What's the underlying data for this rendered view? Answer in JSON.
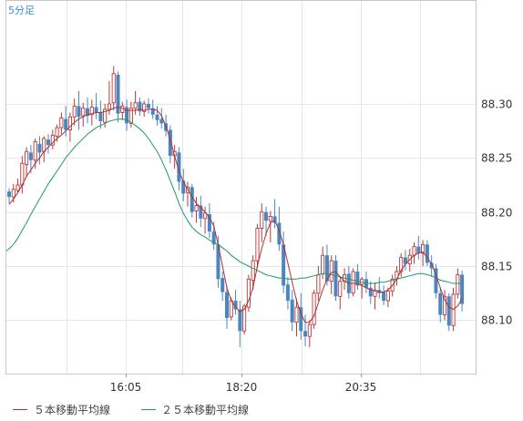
{
  "chart_data": {
    "type": "candlestick",
    "timeframe_label": "5分足",
    "x_ticks": [
      "16:05",
      "18:20",
      "20:35"
    ],
    "y_ticks": [
      "88.30",
      "88.25",
      "88.20",
      "88.15",
      "88.10"
    ],
    "y_tick_values": [
      88.3,
      88.25,
      88.2,
      88.15,
      88.1
    ],
    "ylim": [
      88.0506,
      88.3952
    ],
    "grid": true,
    "legend_position": "bottom-left",
    "colors": {
      "up": "#b83a3a",
      "down": "#4a86c0",
      "ma5": "#b03030",
      "ma25": "#1a9a6a",
      "grid": "#e6e6e6",
      "axis_text": "#333333"
    },
    "series": [
      {
        "name": "５本移動平均線",
        "color": "#b03030"
      },
      {
        "name": "２５本移動平均線",
        "color": "#1a9a6a"
      }
    ],
    "candles": [
      [
        88.219,
        88.222,
        88.208,
        88.214
      ],
      [
        88.214,
        88.226,
        88.209,
        88.221
      ],
      [
        88.22,
        88.231,
        88.218,
        88.225
      ],
      [
        88.225,
        88.252,
        88.217,
        88.245
      ],
      [
        88.244,
        88.26,
        88.232,
        88.256
      ],
      [
        88.255,
        88.262,
        88.236,
        88.248
      ],
      [
        88.248,
        88.268,
        88.24,
        88.265
      ],
      [
        88.263,
        88.27,
        88.244,
        88.255
      ],
      [
        88.256,
        88.27,
        88.246,
        88.268
      ],
      [
        88.267,
        88.272,
        88.254,
        88.262
      ],
      [
        88.262,
        88.276,
        88.258,
        88.271
      ],
      [
        88.27,
        88.281,
        88.265,
        88.278
      ],
      [
        88.278,
        88.292,
        88.272,
        88.287
      ],
      [
        88.286,
        88.298,
        88.27,
        88.276
      ],
      [
        88.276,
        88.292,
        88.265,
        88.288
      ],
      [
        88.288,
        88.305,
        88.28,
        88.298
      ],
      [
        88.298,
        88.312,
        88.276,
        88.288
      ],
      [
        88.289,
        88.301,
        88.279,
        88.296
      ],
      [
        88.296,
        88.306,
        88.282,
        88.289
      ],
      [
        88.29,
        88.304,
        88.28,
        88.297
      ],
      [
        88.297,
        88.31,
        88.286,
        88.292
      ],
      [
        88.292,
        88.303,
        88.277,
        88.284
      ],
      [
        88.283,
        88.3,
        88.278,
        88.295
      ],
      [
        88.295,
        88.321,
        88.29,
        88.3
      ],
      [
        88.301,
        88.335,
        88.294,
        88.328
      ],
      [
        88.327,
        88.33,
        88.283,
        88.291
      ],
      [
        88.292,
        88.302,
        88.285,
        88.298
      ],
      [
        88.297,
        88.304,
        88.275,
        88.282
      ],
      [
        88.282,
        88.302,
        88.278,
        88.296
      ],
      [
        88.296,
        88.312,
        88.29,
        88.301
      ],
      [
        88.302,
        88.306,
        88.289,
        88.293
      ],
      [
        88.293,
        88.303,
        88.288,
        88.3
      ],
      [
        88.3,
        88.305,
        88.291,
        88.296
      ],
      [
        88.296,
        88.304,
        88.286,
        88.29
      ],
      [
        88.29,
        88.298,
        88.28,
        88.285
      ],
      [
        88.286,
        88.296,
        88.277,
        88.282
      ],
      [
        88.282,
        88.29,
        88.27,
        88.275
      ],
      [
        88.276,
        88.28,
        88.245,
        88.252
      ],
      [
        88.252,
        88.262,
        88.24,
        88.256
      ],
      [
        88.255,
        88.26,
        88.22,
        88.228
      ],
      [
        88.229,
        88.24,
        88.21,
        88.217
      ],
      [
        88.218,
        88.228,
        88.205,
        88.223
      ],
      [
        88.223,
        88.226,
        88.195,
        88.2
      ],
      [
        88.201,
        88.214,
        88.19,
        88.206
      ],
      [
        88.206,
        88.215,
        88.186,
        88.194
      ],
      [
        88.194,
        88.205,
        88.18,
        88.199
      ],
      [
        88.198,
        88.208,
        88.176,
        88.182
      ],
      [
        88.182,
        88.191,
        88.165,
        88.17
      ],
      [
        88.17,
        88.178,
        88.13,
        88.138
      ],
      [
        88.139,
        88.145,
        88.118,
        88.126
      ],
      [
        88.126,
        88.132,
        88.092,
        88.102
      ],
      [
        88.103,
        88.121,
        88.1,
        88.118
      ],
      [
        88.118,
        88.128,
        88.105,
        88.11
      ],
      [
        88.11,
        88.118,
        88.075,
        88.09
      ],
      [
        88.09,
        88.115,
        88.087,
        88.113
      ],
      [
        88.112,
        88.142,
        88.108,
        88.138
      ],
      [
        88.137,
        88.16,
        88.128,
        88.155
      ],
      [
        88.155,
        88.189,
        88.148,
        88.185
      ],
      [
        88.185,
        88.208,
        88.172,
        88.2
      ],
      [
        88.2,
        88.205,
        88.178,
        88.192
      ],
      [
        88.192,
        88.201,
        88.172,
        88.196
      ],
      [
        88.196,
        88.212,
        88.185,
        88.19
      ],
      [
        88.19,
        88.205,
        88.164,
        88.17
      ],
      [
        88.17,
        88.182,
        88.125,
        88.132
      ],
      [
        88.133,
        88.14,
        88.11,
        88.118
      ],
      [
        88.119,
        88.128,
        88.09,
        88.098
      ],
      [
        88.098,
        88.12,
        88.085,
        88.112
      ],
      [
        88.112,
        88.125,
        88.082,
        88.09
      ],
      [
        88.09,
        88.105,
        88.076,
        88.085
      ],
      [
        88.085,
        88.1,
        88.075,
        88.096
      ],
      [
        88.096,
        88.128,
        88.092,
        88.125
      ],
      [
        88.125,
        88.15,
        88.118,
        88.142
      ],
      [
        88.143,
        88.168,
        88.138,
        88.16
      ],
      [
        88.16,
        88.17,
        88.132,
        88.136
      ],
      [
        88.136,
        88.16,
        88.124,
        88.155
      ],
      [
        88.155,
        88.16,
        88.118,
        88.122
      ],
      [
        88.122,
        88.14,
        88.11,
        88.136
      ],
      [
        88.136,
        88.148,
        88.128,
        88.142
      ],
      [
        88.143,
        88.15,
        88.12,
        88.125
      ],
      [
        88.125,
        88.148,
        88.122,
        88.145
      ],
      [
        88.145,
        88.152,
        88.128,
        88.132
      ],
      [
        88.133,
        88.14,
        88.12,
        88.138
      ],
      [
        88.138,
        88.145,
        88.125,
        88.13
      ],
      [
        88.13,
        88.136,
        88.115,
        88.122
      ],
      [
        88.122,
        88.135,
        88.11,
        88.128
      ],
      [
        88.128,
        88.14,
        88.12,
        88.125
      ],
      [
        88.126,
        88.132,
        88.114,
        88.118
      ],
      [
        88.118,
        88.13,
        88.112,
        88.127
      ],
      [
        88.127,
        88.142,
        88.122,
        88.138
      ],
      [
        88.138,
        88.15,
        88.132,
        88.145
      ],
      [
        88.145,
        88.162,
        88.14,
        88.158
      ],
      [
        88.158,
        88.165,
        88.146,
        88.152
      ],
      [
        88.152,
        88.166,
        88.145,
        88.16
      ],
      [
        88.16,
        88.172,
        88.152,
        88.168
      ],
      [
        88.168,
        88.178,
        88.156,
        88.162
      ],
      [
        88.162,
        88.174,
        88.15,
        88.17
      ],
      [
        88.17,
        88.174,
        88.15,
        88.153
      ],
      [
        88.153,
        88.16,
        88.14,
        88.148
      ],
      [
        88.148,
        88.152,
        88.12,
        88.125
      ],
      [
        88.125,
        88.13,
        88.098,
        88.105
      ],
      [
        88.105,
        88.128,
        88.1,
        88.122
      ],
      [
        88.122,
        88.125,
        88.09,
        88.095
      ],
      [
        88.095,
        88.13,
        88.09,
        88.124
      ],
      [
        88.124,
        88.148,
        88.12,
        88.142
      ],
      [
        88.142,
        88.146,
        88.108,
        88.115
      ]
    ],
    "ma5": [
      88.207,
      88.212,
      88.218,
      88.225,
      88.233,
      88.239,
      88.245,
      88.25,
      88.256,
      88.26,
      88.264,
      88.268,
      88.271,
      88.275,
      88.279,
      88.283,
      88.286,
      88.288,
      88.29,
      88.291,
      88.292,
      88.292,
      88.293,
      88.294,
      88.296,
      88.297,
      88.296,
      88.294,
      88.294,
      88.294,
      88.295,
      88.294,
      88.295,
      88.295,
      88.294,
      88.289,
      88.279,
      88.267,
      88.252,
      88.238,
      88.228,
      88.221,
      88.214,
      88.208,
      88.204,
      88.2,
      88.195,
      88.187,
      88.17,
      88.15,
      88.13,
      88.118,
      88.112,
      88.108,
      88.11,
      88.118,
      88.13,
      88.15,
      88.166,
      88.18,
      88.19,
      88.192,
      88.183,
      88.17,
      88.153,
      88.135,
      88.118,
      88.106,
      88.098,
      88.098,
      88.104,
      88.116,
      88.128,
      88.138,
      88.144,
      88.145,
      88.14,
      88.136,
      88.134,
      88.134,
      88.134,
      88.132,
      88.13,
      88.128,
      88.127,
      88.126,
      88.126,
      88.128,
      88.132,
      88.138,
      88.146,
      88.152,
      88.156,
      88.16,
      88.162,
      88.163,
      88.158,
      88.152,
      88.142,
      88.13,
      88.119,
      88.112,
      88.11,
      88.113,
      88.12
    ],
    "ma25": [
      88.166,
      88.17,
      88.176,
      88.183,
      88.19,
      88.198,
      88.205,
      88.212,
      88.219,
      88.226,
      88.232,
      88.238,
      88.244,
      88.25,
      88.255,
      88.26,
      88.264,
      88.268,
      88.272,
      88.275,
      88.278,
      88.28,
      88.282,
      88.284,
      88.285,
      88.286,
      88.286,
      88.285,
      88.283,
      88.28,
      88.277,
      88.273,
      88.268,
      88.262,
      88.256,
      88.248,
      88.239,
      88.229,
      88.219,
      88.208,
      88.199,
      88.192,
      88.186,
      88.182,
      88.179,
      88.177,
      88.174,
      88.172,
      88.17,
      88.167,
      88.164,
      88.16,
      88.157,
      88.154,
      88.152,
      88.15,
      88.148,
      88.146,
      88.144,
      88.142,
      88.141,
      88.14,
      88.139,
      88.139,
      88.138,
      88.138,
      88.138,
      88.139,
      88.139,
      88.14,
      88.141,
      88.142,
      88.143,
      88.143,
      88.142,
      88.141,
      88.14,
      88.139,
      88.138,
      88.137,
      88.136,
      88.135,
      88.134,
      88.134,
      88.134,
      88.135,
      88.135,
      88.136,
      88.137,
      88.138,
      88.139,
      88.14,
      88.141,
      88.142,
      88.143,
      88.143,
      88.142,
      88.141,
      88.139,
      88.137,
      88.136,
      88.135,
      88.134,
      88.134,
      88.134
    ]
  }
}
